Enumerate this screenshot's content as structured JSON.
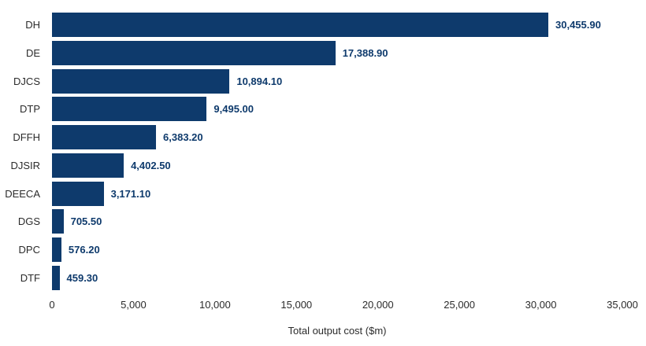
{
  "chart_data": {
    "type": "bar",
    "orientation": "horizontal",
    "categories": [
      "DH",
      "DE",
      "DJCS",
      "DTP",
      "DFFH",
      "DJSIR",
      "DEECA",
      "DGS",
      "DPC",
      "DTF"
    ],
    "values": [
      30455.9,
      17388.9,
      10894.1,
      9495.0,
      6383.2,
      4402.5,
      3171.1,
      705.5,
      576.2,
      459.3
    ],
    "value_labels": [
      "30,455.90",
      "17,388.90",
      "10,894.10",
      "9,495.00",
      "6,383.20",
      "4,402.50",
      "3,171.10",
      "705.50",
      "576.20",
      "459.30"
    ],
    "title": "",
    "xlabel": "Total output cost ($m)",
    "ylabel": "",
    "xlim": [
      0,
      35000
    ],
    "xticks": [
      0,
      5000,
      10000,
      15000,
      20000,
      25000,
      30000,
      35000
    ],
    "xtick_labels": [
      "0",
      "5,000",
      "10,000",
      "15,000",
      "20,000",
      "25,000",
      "30,000",
      "35,000"
    ],
    "grid": false,
    "legend": false,
    "bar_color": "#0e3a6c",
    "value_label_color": "#0e3a6c",
    "axis_text_color": "#2b2b2b",
    "background_color": "#ffffff"
  }
}
